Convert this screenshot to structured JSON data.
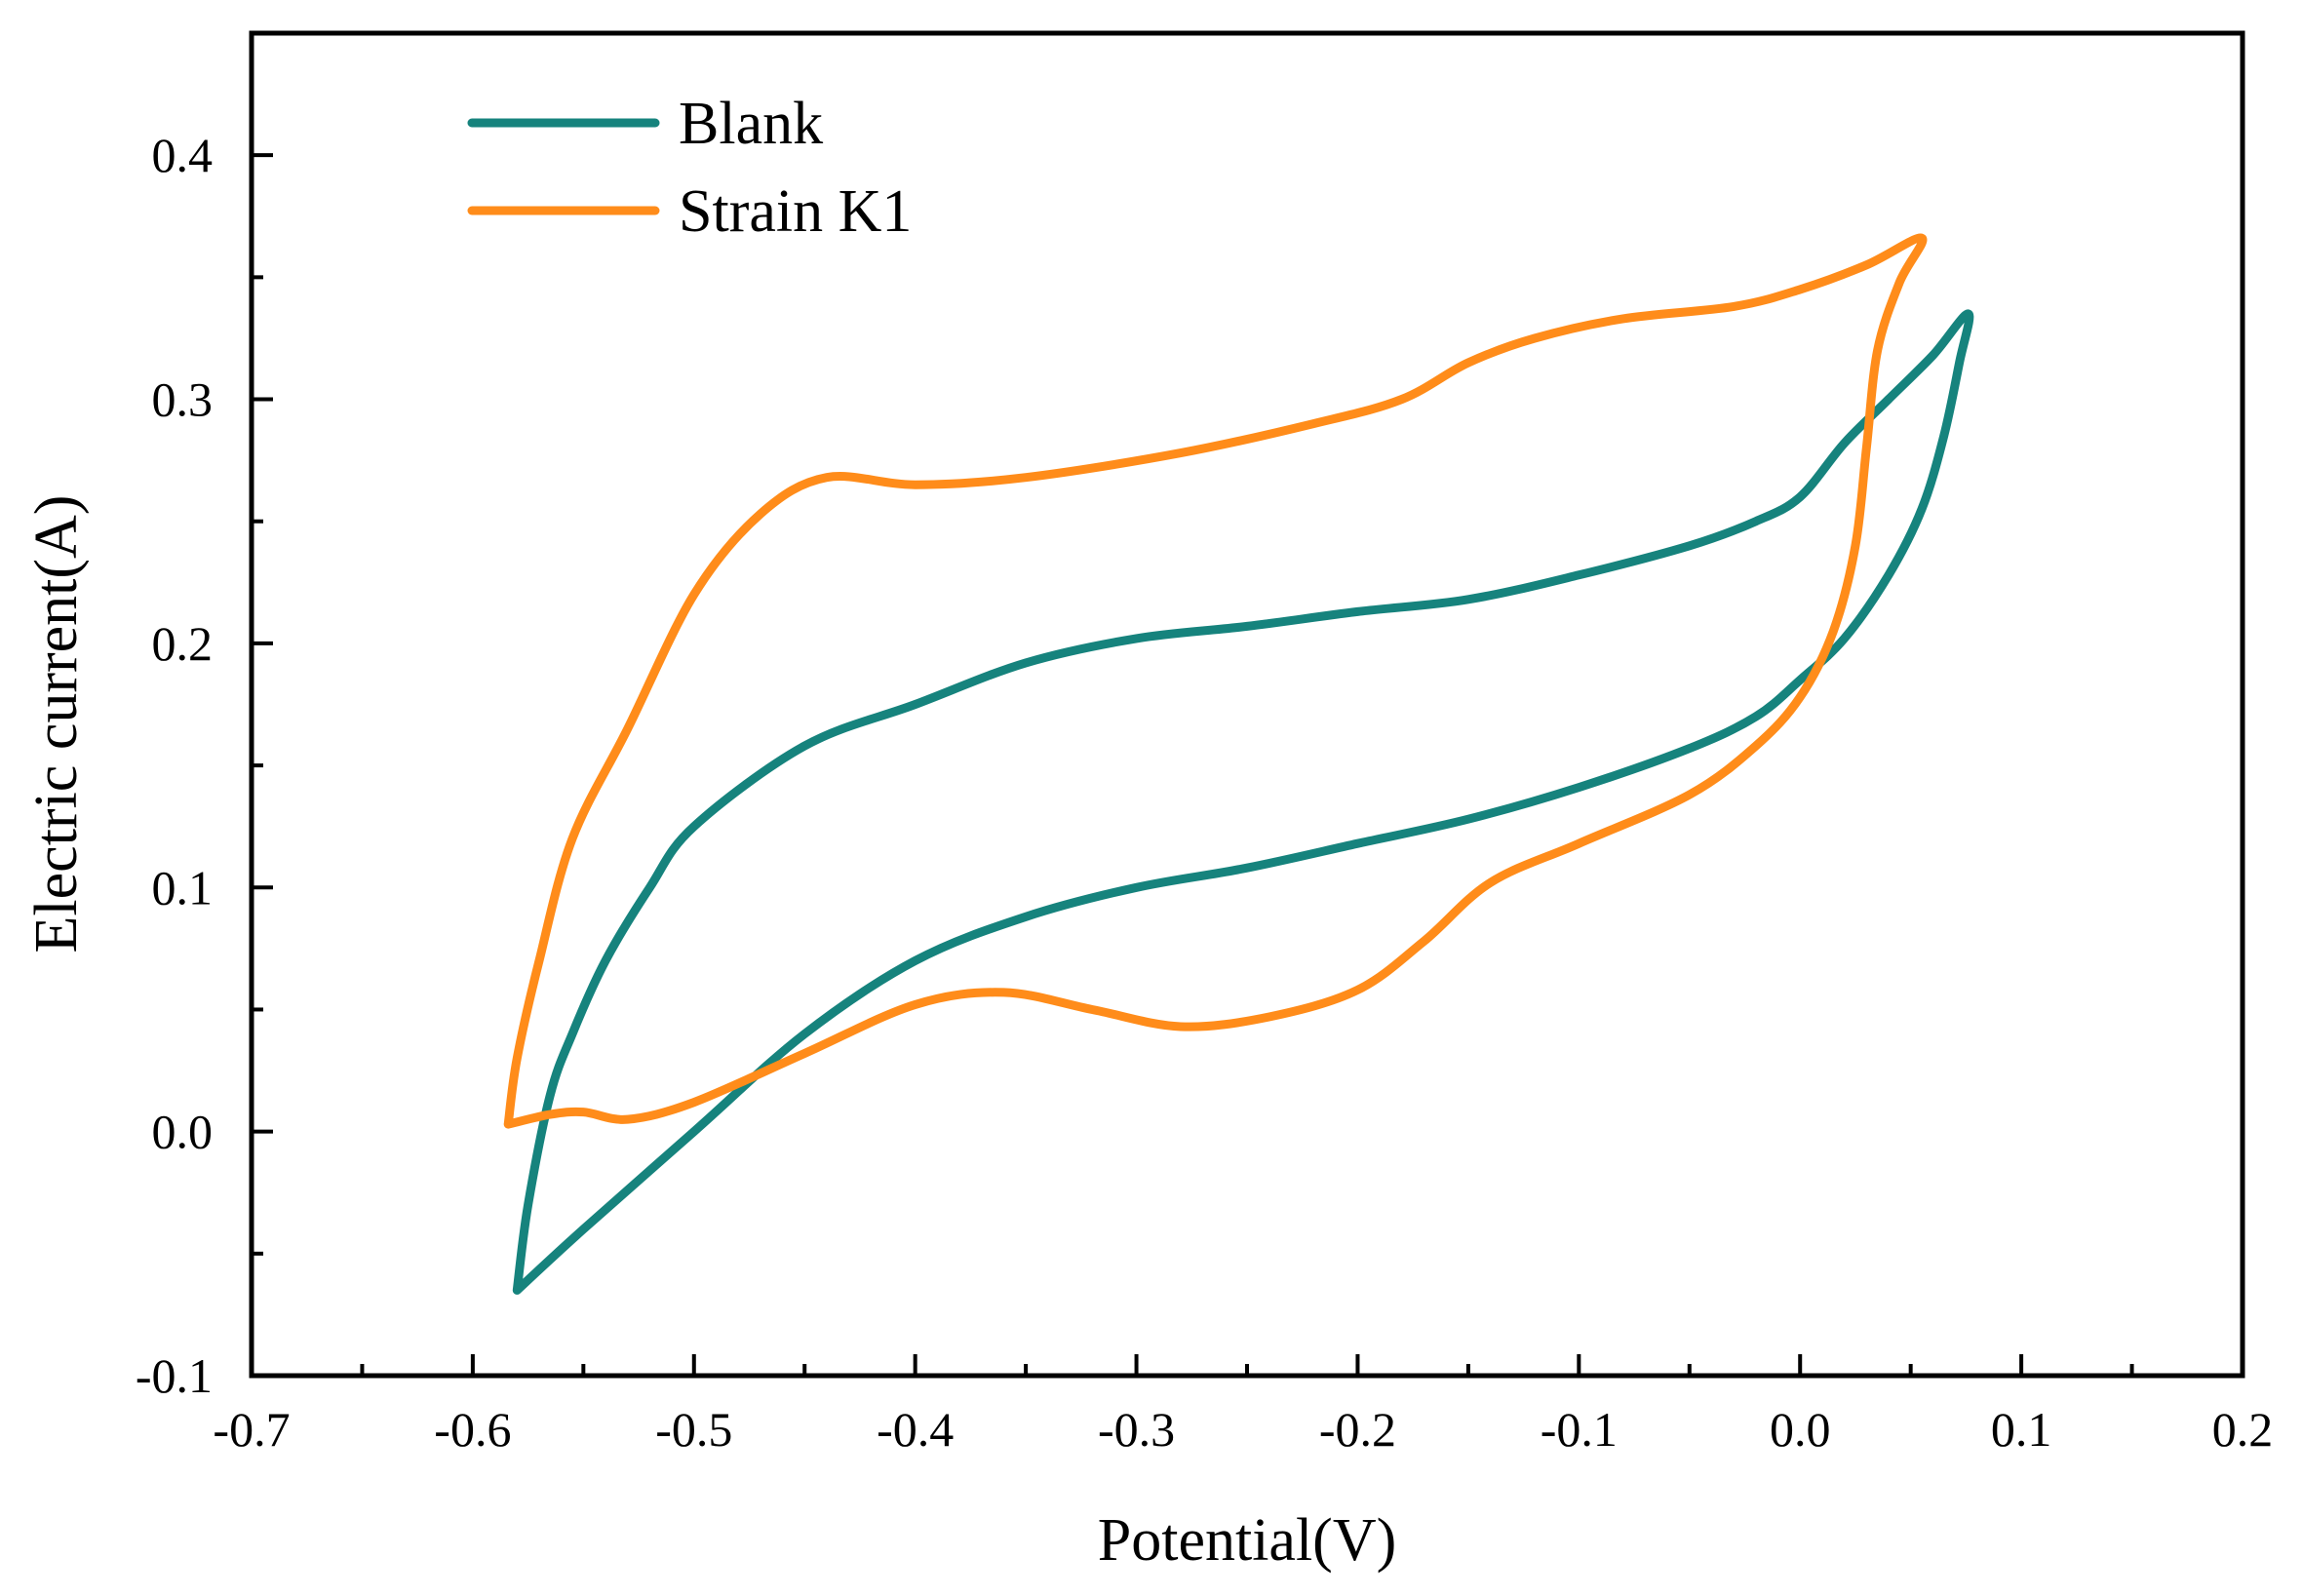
{
  "chart_data": {
    "type": "line",
    "xlabel": "Potential(V)",
    "ylabel": "Electric current(A)",
    "xlim": [
      -0.7,
      0.2
    ],
    "ylim": [
      -0.1,
      0.45
    ],
    "x_ticks": [
      -0.7,
      -0.6,
      -0.5,
      -0.4,
      -0.3,
      -0.2,
      -0.1,
      0.0,
      0.1,
      0.2
    ],
    "x_tick_labels": [
      "-0.7",
      "-0.6",
      "-0.5",
      "-0.4",
      "-0.3",
      "-0.2",
      "-0.1",
      "0.0",
      "0.1",
      "0.2"
    ],
    "y_ticks": [
      -0.1,
      0.0,
      0.1,
      0.2,
      0.3,
      0.4
    ],
    "y_tick_labels": [
      "-0.1",
      "0.0",
      "0.1",
      "0.2",
      "0.3",
      "0.4"
    ],
    "grid": false,
    "legend_position": "top-left",
    "series": [
      {
        "name": "Blank",
        "color": "#16837d",
        "points": [
          [
            -0.58,
            -0.065
          ],
          [
            -0.55,
            -0.04
          ],
          [
            -0.5,
            0.0
          ],
          [
            -0.45,
            0.04
          ],
          [
            -0.4,
            0.07
          ],
          [
            -0.35,
            0.088
          ],
          [
            -0.3,
            0.1
          ],
          [
            -0.25,
            0.108
          ],
          [
            -0.2,
            0.118
          ],
          [
            -0.15,
            0.128
          ],
          [
            -0.1,
            0.141
          ],
          [
            -0.05,
            0.157
          ],
          [
            -0.02,
            0.17
          ],
          [
            0.0,
            0.185
          ],
          [
            0.02,
            0.202
          ],
          [
            0.04,
            0.228
          ],
          [
            0.055,
            0.255
          ],
          [
            0.065,
            0.285
          ],
          [
            0.072,
            0.315
          ],
          [
            0.076,
            0.335
          ],
          [
            0.06,
            0.318
          ],
          [
            0.04,
            0.3
          ],
          [
            0.02,
            0.282
          ],
          [
            0.0,
            0.26
          ],
          [
            -0.02,
            0.25
          ],
          [
            -0.05,
            0.24
          ],
          [
            -0.1,
            0.228
          ],
          [
            -0.15,
            0.218
          ],
          [
            -0.2,
            0.213
          ],
          [
            -0.25,
            0.207
          ],
          [
            -0.3,
            0.202
          ],
          [
            -0.35,
            0.192
          ],
          [
            -0.4,
            0.175
          ],
          [
            -0.45,
            0.158
          ],
          [
            -0.5,
            0.125
          ],
          [
            -0.52,
            0.1
          ],
          [
            -0.54,
            0.07
          ],
          [
            -0.555,
            0.04
          ],
          [
            -0.565,
            0.015
          ],
          [
            -0.575,
            -0.03
          ],
          [
            -0.58,
            -0.065
          ]
        ]
      },
      {
        "name": "Strain K1",
        "color": "#ff8c1a",
        "points": [
          [
            -0.584,
            0.003
          ],
          [
            -0.565,
            0.007
          ],
          [
            -0.55,
            0.008
          ],
          [
            -0.53,
            0.005
          ],
          [
            -0.5,
            0.012
          ],
          [
            -0.45,
            0.032
          ],
          [
            -0.4,
            0.052
          ],
          [
            -0.36,
            0.057
          ],
          [
            -0.32,
            0.05
          ],
          [
            -0.28,
            0.043
          ],
          [
            -0.24,
            0.047
          ],
          [
            -0.2,
            0.058
          ],
          [
            -0.17,
            0.078
          ],
          [
            -0.14,
            0.102
          ],
          [
            -0.1,
            0.118
          ],
          [
            -0.05,
            0.138
          ],
          [
            -0.02,
            0.158
          ],
          [
            0.0,
            0.178
          ],
          [
            0.015,
            0.205
          ],
          [
            0.025,
            0.24
          ],
          [
            0.03,
            0.28
          ],
          [
            0.035,
            0.32
          ],
          [
            0.045,
            0.348
          ],
          [
            0.055,
            0.366
          ],
          [
            0.03,
            0.355
          ],
          [
            0.0,
            0.345
          ],
          [
            -0.03,
            0.338
          ],
          [
            -0.08,
            0.333
          ],
          [
            -0.12,
            0.325
          ],
          [
            -0.15,
            0.315
          ],
          [
            -0.18,
            0.3
          ],
          [
            -0.22,
            0.29
          ],
          [
            -0.28,
            0.278
          ],
          [
            -0.35,
            0.268
          ],
          [
            -0.4,
            0.265
          ],
          [
            -0.44,
            0.268
          ],
          [
            -0.47,
            0.253
          ],
          [
            -0.5,
            0.22
          ],
          [
            -0.53,
            0.165
          ],
          [
            -0.555,
            0.12
          ],
          [
            -0.57,
            0.07
          ],
          [
            -0.58,
            0.03
          ],
          [
            -0.584,
            0.003
          ]
        ]
      }
    ]
  }
}
